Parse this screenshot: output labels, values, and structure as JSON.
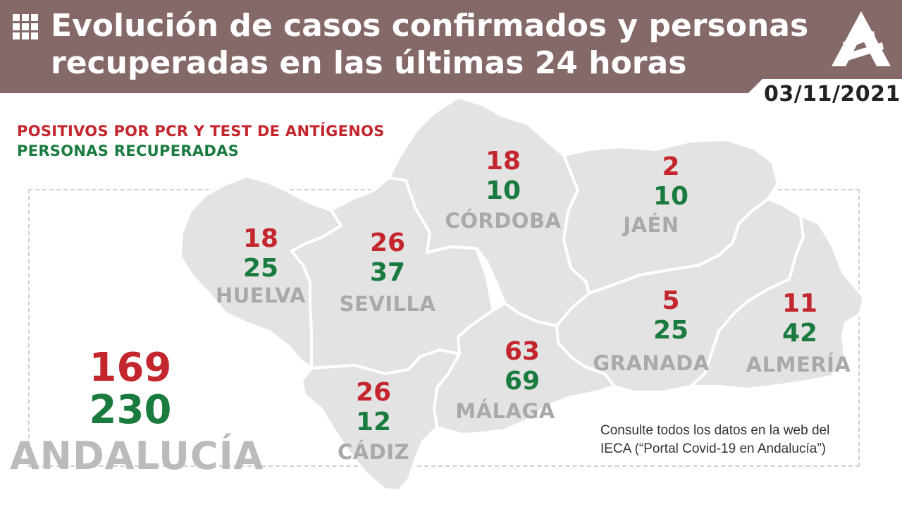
{
  "header": {
    "title_line1": "Evolución de casos confirmados y personas",
    "title_line2": "recuperadas en las últimas 24 horas",
    "date": "03/11/2021"
  },
  "legend": {
    "positives": "POSITIVOS POR PCR Y TEST DE ANTÍGENOS",
    "recovered": "PERSONAS RECUPERADAS"
  },
  "colors": {
    "header_bg": "#856969",
    "positives": "#c4262e",
    "recovered": "#1a7b3f",
    "province_fill": "#e3e3e3",
    "label_gray": "#a9a9a9"
  },
  "provinces": {
    "huelva": {
      "name": "HUELVA",
      "positives": "18",
      "recovered": "25"
    },
    "sevilla": {
      "name": "SEVILLA",
      "positives": "26",
      "recovered": "37"
    },
    "cordoba": {
      "name": "CÓRDOBA",
      "positives": "18",
      "recovered": "10"
    },
    "jaen": {
      "name": "JAÉN",
      "positives": "2",
      "recovered": "10"
    },
    "granada": {
      "name": "GRANADA",
      "positives": "5",
      "recovered": "25"
    },
    "almeria": {
      "name": "ALMERÍA",
      "positives": "11",
      "recovered": "42"
    },
    "malaga": {
      "name": "MÁLAGA",
      "positives": "63",
      "recovered": "69"
    },
    "cadiz": {
      "name": "CÁDIZ",
      "positives": "26",
      "recovered": "12"
    }
  },
  "total": {
    "name": "ANDALUCÍA",
    "positives": "169",
    "recovered": "230"
  },
  "note": {
    "line1": "Consulte todos los datos en la web del",
    "line2": "IECA (“Portal Covid-19 en Andalucía”)"
  }
}
